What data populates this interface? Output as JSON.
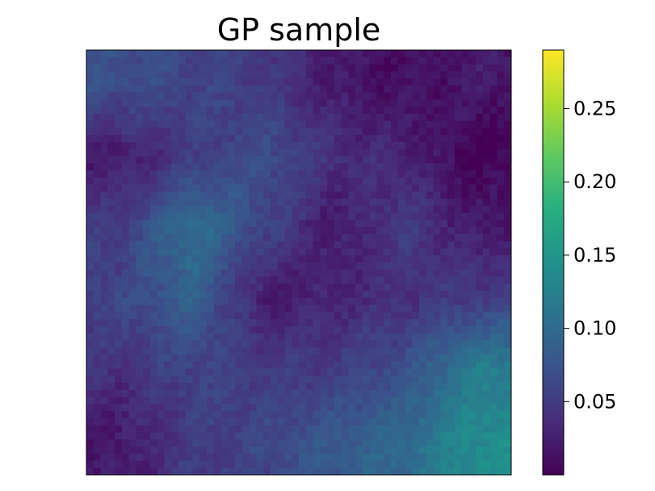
{
  "chart_data": {
    "type": "heatmap",
    "title": "GP sample",
    "xlabel": "",
    "ylabel": "",
    "grid_size": [
      60,
      60
    ],
    "axes_ticks_visible": false,
    "colormap": "viridis",
    "colorbar": {
      "vmin": 0.0,
      "vmax": 0.29,
      "ticks": [
        0.05,
        0.1,
        0.15,
        0.2,
        0.25
      ],
      "tick_labels": [
        "0.05",
        "0.10",
        "0.15",
        "0.20",
        "0.25"
      ],
      "placement": "right"
    },
    "field_summary": {
      "coarse_grid": [
        6,
        6
      ],
      "values": [
        [
          0.07,
          0.06,
          0.05,
          0.02,
          0.01,
          0.02
        ],
        [
          0.02,
          0.05,
          0.07,
          0.04,
          0.03,
          0.0
        ],
        [
          0.05,
          0.11,
          0.06,
          0.02,
          0.05,
          0.02
        ],
        [
          0.06,
          0.09,
          0.02,
          0.03,
          0.04,
          0.05
        ],
        [
          0.04,
          0.06,
          0.05,
          0.05,
          0.07,
          0.12
        ],
        [
          0.02,
          0.05,
          0.06,
          0.08,
          0.1,
          0.14
        ]
      ]
    }
  }
}
